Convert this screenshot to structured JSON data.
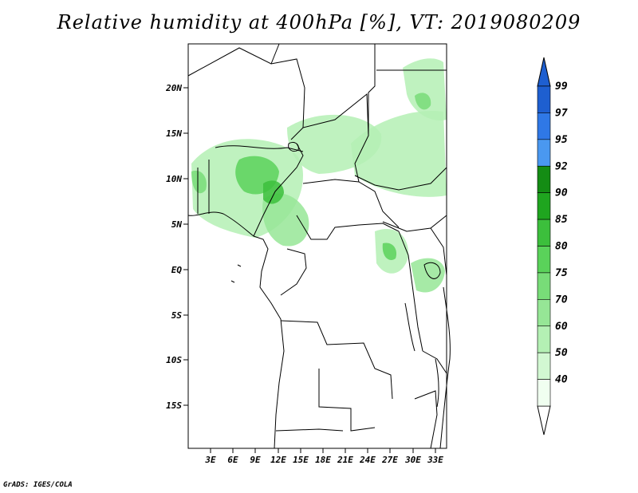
{
  "title": "Relative humidity at 400hPa [%], VT: 2019080209",
  "credit": "GrADS: IGES/COLA",
  "map": {
    "lat_ticks": [
      "20N",
      "15N",
      "10N",
      "5N",
      "EQ",
      "5S",
      "10S",
      "15S"
    ],
    "lon_ticks": [
      "3E",
      "6E",
      "9E",
      "12E",
      "15E",
      "18E",
      "21E",
      "24E",
      "27E",
      "30E",
      "33E"
    ]
  },
  "colorbar": {
    "labels": [
      "99",
      "97",
      "95",
      "92",
      "90",
      "85",
      "80",
      "75",
      "70",
      "60",
      "50",
      "40"
    ],
    "colors": [
      "#1e5fd0",
      "#2f78e6",
      "#4a98f0",
      "#148c14",
      "#1fa51f",
      "#3cbf3c",
      "#5ad25a",
      "#78dc78",
      "#96e696",
      "#b4f0b4",
      "#d2f8d2",
      "#f0fff0"
    ]
  }
}
